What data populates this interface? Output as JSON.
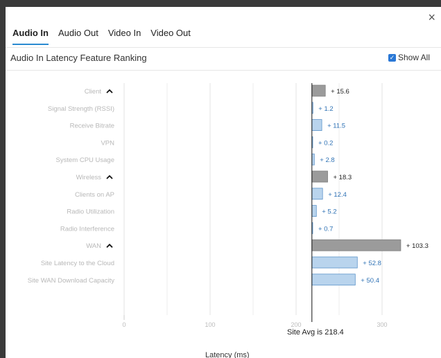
{
  "tabs": [
    {
      "label": "Audio In",
      "active": true
    },
    {
      "label": "Audio Out",
      "active": false
    },
    {
      "label": "Video In",
      "active": false
    },
    {
      "label": "Video Out",
      "active": false
    }
  ],
  "close_icon": "×",
  "subtitle": "Audio In Latency Feature Ranking",
  "show_all": {
    "label": "Show All",
    "checked": true
  },
  "avg_label": "Site Avg is 218.4",
  "colors": {
    "group_bar": "#9b9b9b",
    "feature_bar": "#b9d4ed",
    "feature_stroke": "#5b93c9",
    "feature_text": "#2f72b5",
    "label_text": "#b8b8b8"
  },
  "chart_data": {
    "type": "bar",
    "orientation": "horizontal",
    "title": "Audio In Latency Feature Ranking",
    "xlabel": "Latency (ms)",
    "x_ticks": [
      0,
      100,
      200,
      300
    ],
    "xlim": [
      0,
      330
    ],
    "baseline": 218.4,
    "rows": [
      {
        "label": "Client",
        "value": 15.6,
        "value_label": "+ 15.6",
        "group": true
      },
      {
        "label": "Signal Strength (RSSI)",
        "value": 1.2,
        "value_label": "+ 1.2",
        "group": false
      },
      {
        "label": "Receive Bitrate",
        "value": 11.5,
        "value_label": "+ 11.5",
        "group": false
      },
      {
        "label": "VPN",
        "value": 0.2,
        "value_label": "+ 0.2",
        "group": false
      },
      {
        "label": "System CPU Usage",
        "value": 2.8,
        "value_label": "+ 2.8",
        "group": false
      },
      {
        "label": "Wireless",
        "value": 18.3,
        "value_label": "+ 18.3",
        "group": true
      },
      {
        "label": "Clients on AP",
        "value": 12.4,
        "value_label": "+ 12.4",
        "group": false
      },
      {
        "label": "Radio Utilization",
        "value": 5.2,
        "value_label": "+ 5.2",
        "group": false
      },
      {
        "label": "Radio Interference",
        "value": 0.7,
        "value_label": "+ 0.7",
        "group": false
      },
      {
        "label": "WAN",
        "value": 103.3,
        "value_label": "+ 103.3",
        "group": true
      },
      {
        "label": "Site Latency to the Cloud",
        "value": 52.8,
        "value_label": "+ 52.8",
        "group": false
      },
      {
        "label": "Site WAN Download Capacity",
        "value": 50.4,
        "value_label": "+ 50.4",
        "group": false
      }
    ]
  }
}
